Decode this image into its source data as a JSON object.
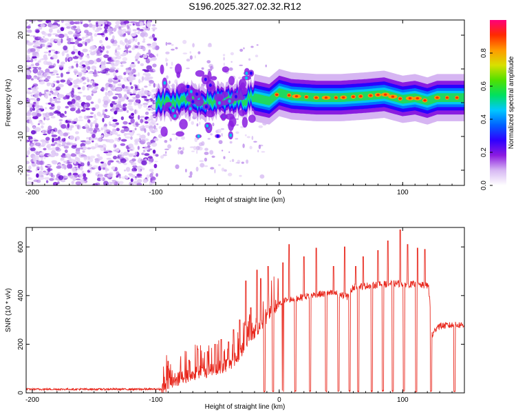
{
  "figure_title": "S196.2025.327.02.32.R12",
  "chart_data": [
    {
      "type": "heatmap",
      "title": "S196.2025.327.02.32.R12",
      "xlabel": "Height of straight line (km)",
      "ylabel": "Frequency (Hz)",
      "xlim": [
        -205,
        150
      ],
      "ylim": [
        -24.5,
        24.5
      ],
      "x_ticks": [
        -200,
        -100,
        0,
        100
      ],
      "x_tick_labels": [
        "-200",
        "-100",
        "0",
        "100"
      ],
      "y_ticks": [
        -20,
        -10,
        0,
        10,
        20
      ],
      "y_tick_labels": [
        "-20",
        "-10",
        "0",
        "10",
        "20"
      ],
      "colorbar": {
        "label": "Normalized spectral amplitude",
        "range": [
          0,
          1
        ],
        "ticks": [
          0.0,
          0.2,
          0.4,
          0.6,
          0.8
        ],
        "tick_labels": [
          "0.0",
          "0.2",
          "0.4",
          "0.6",
          "0.8"
        ],
        "colors": [
          "#ffffff",
          "#d7b8f3",
          "#8c1be0",
          "#2f00ff",
          "#0060ff",
          "#00c8ff",
          "#00e060",
          "#50e000",
          "#d8e000",
          "#ff9a00",
          "#ff2a00",
          "#ff007a"
        ]
      },
      "noise_region_x": [
        -205,
        -99
      ],
      "signal_track": [
        {
          "x": -100,
          "y": 0.5
        },
        {
          "x": -85,
          "y": 0.0
        },
        {
          "x": -70,
          "y": 0.5
        },
        {
          "x": -55,
          "y": 0.5
        },
        {
          "x": -40,
          "y": 0.5
        },
        {
          "x": -20,
          "y": 1.5
        },
        {
          "x": -8,
          "y": 0.5
        },
        {
          "x": 0,
          "y": 3.0
        },
        {
          "x": 10,
          "y": 2.0
        },
        {
          "x": 30,
          "y": 1.5
        },
        {
          "x": 50,
          "y": 1.5
        },
        {
          "x": 70,
          "y": 2.0
        },
        {
          "x": 85,
          "y": 2.5
        },
        {
          "x": 100,
          "y": 1.0
        },
        {
          "x": 110,
          "y": 1.5
        },
        {
          "x": 120,
          "y": 0.5
        },
        {
          "x": 128,
          "y": 1.5
        },
        {
          "x": 150,
          "y": 1.5
        }
      ]
    },
    {
      "type": "line",
      "xlabel": "Height of straight line (km)",
      "ylabel": "SNR (10 * v/v)",
      "xlim": [
        -205,
        150
      ],
      "ylim": [
        0,
        680
      ],
      "x_ticks": [
        -200,
        -100,
        0,
        100
      ],
      "x_tick_labels": [
        "-200",
        "-100",
        "0",
        "100"
      ],
      "y_ticks": [
        0,
        200,
        400,
        600
      ],
      "y_tick_labels": [
        "0",
        "200",
        "400",
        "600"
      ],
      "color": "#e8261b",
      "baseline": [
        {
          "x": -205,
          "y": 15
        },
        {
          "x": -95,
          "y": 15
        },
        {
          "x": -88,
          "y": 45
        },
        {
          "x": -75,
          "y": 70
        },
        {
          "x": -60,
          "y": 90
        },
        {
          "x": -45,
          "y": 110
        },
        {
          "x": -35,
          "y": 140
        },
        {
          "x": -28,
          "y": 200
        },
        {
          "x": -20,
          "y": 250
        },
        {
          "x": -12,
          "y": 300
        },
        {
          "x": -5,
          "y": 345
        },
        {
          "x": 5,
          "y": 380
        },
        {
          "x": 15,
          "y": 390
        },
        {
          "x": 30,
          "y": 405
        },
        {
          "x": 45,
          "y": 410
        },
        {
          "x": 55,
          "y": 395
        },
        {
          "x": 60,
          "y": 435
        },
        {
          "x": 80,
          "y": 445
        },
        {
          "x": 95,
          "y": 450
        },
        {
          "x": 110,
          "y": 445
        },
        {
          "x": 121,
          "y": 440
        },
        {
          "x": 124,
          "y": 235
        },
        {
          "x": 128,
          "y": 275
        },
        {
          "x": 150,
          "y": 280
        }
      ],
      "dips": [
        -12,
        -5,
        3,
        13,
        25,
        38,
        48,
        57,
        64,
        75,
        84,
        92,
        101,
        111,
        123,
        142
      ],
      "spikes": [
        {
          "x": -90,
          "y": 130
        },
        {
          "x": -73,
          "y": 135
        },
        {
          "x": -66,
          "y": 180
        },
        {
          "x": -58,
          "y": 170
        },
        {
          "x": -52,
          "y": 200
        },
        {
          "x": -47,
          "y": 220
        },
        {
          "x": -41,
          "y": 210
        },
        {
          "x": -37,
          "y": 260
        },
        {
          "x": -32,
          "y": 300
        },
        {
          "x": -27,
          "y": 460
        },
        {
          "x": -23,
          "y": 350
        },
        {
          "x": -18,
          "y": 505
        },
        {
          "x": -15,
          "y": 470
        },
        {
          "x": -9,
          "y": 520
        },
        {
          "x": 3,
          "y": 535
        },
        {
          "x": 8,
          "y": 610
        },
        {
          "x": 20,
          "y": 560
        },
        {
          "x": 30,
          "y": 595
        },
        {
          "x": 44,
          "y": 520
        },
        {
          "x": 53,
          "y": 600
        },
        {
          "x": 62,
          "y": 520
        },
        {
          "x": 68,
          "y": 560
        },
        {
          "x": 80,
          "y": 585
        },
        {
          "x": 88,
          "y": 625
        },
        {
          "x": 98,
          "y": 670
        },
        {
          "x": 104,
          "y": 610
        },
        {
          "x": 112,
          "y": 595
        },
        {
          "x": 118,
          "y": 590
        }
      ]
    }
  ]
}
